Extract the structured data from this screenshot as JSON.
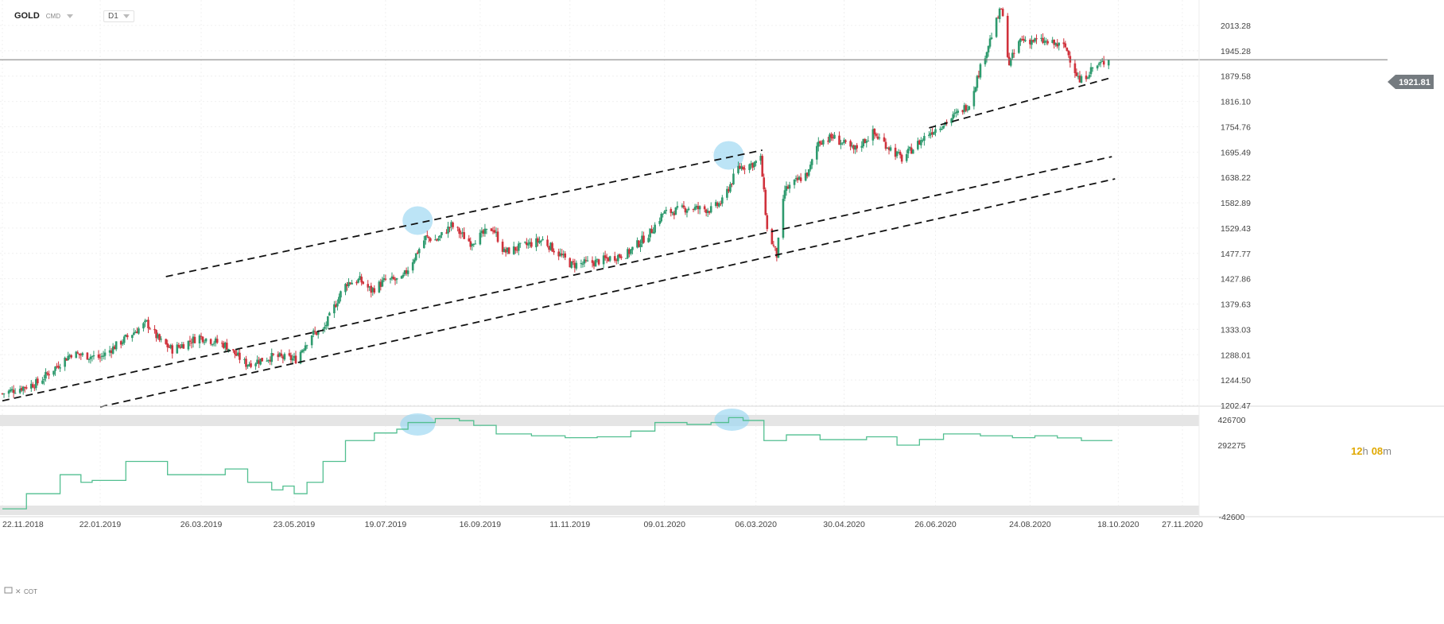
{
  "toolbar": {
    "symbol": "GOLD",
    "instrument_type": "CMD",
    "timeframe": "D1"
  },
  "countdown": {
    "hours": "12",
    "h": "h",
    "minutes": "08",
    "m": "m"
  },
  "indicator_label": "COT",
  "last_price_label": "1921.81",
  "colors": {
    "up": "#2e9a6e",
    "down": "#d0323c",
    "cot_line": "#52bf90",
    "highlight": "#9fd8f2",
    "channel": "#111111"
  },
  "chart_data": [
    {
      "type": "candlestick",
      "interval": "D1",
      "symbol": "GOLD",
      "x_range": [
        "2018-11-22",
        "2020-11-27"
      ],
      "ylim": [
        1202.47,
        2075
      ],
      "y_ticks": [
        "2013.28",
        "1945.28",
        "1879.58",
        "1816.10",
        "1754.76",
        "1695.49",
        "1638.22",
        "1582.89",
        "1529.43",
        "1477.77",
        "1427.86",
        "1379.63",
        "1333.03",
        "1288.01",
        "1244.50",
        "1202.47"
      ],
      "x_ticks": [
        "22.11.2018",
        "22.01.2019",
        "26.03.2019",
        "23.05.2019",
        "19.07.2019",
        "16.09.2019",
        "11.11.2019",
        "09.01.2020",
        "06.03.2020",
        "30.04.2020",
        "26.06.2020",
        "24.08.2020",
        "18.10.2020",
        "27.11.2020"
      ],
      "grid": true,
      "last_price": 1921.81,
      "close_path": [
        [
          "2018-11-22",
          1222
        ],
        [
          "2018-12-14",
          1240
        ],
        [
          "2019-01-04",
          1290
        ],
        [
          "2019-01-22",
          1283
        ],
        [
          "2019-02-20",
          1345
        ],
        [
          "2019-02-28",
          1313
        ],
        [
          "2019-03-08",
          1297
        ],
        [
          "2019-03-25",
          1320
        ],
        [
          "2019-04-10",
          1305
        ],
        [
          "2019-04-23",
          1272
        ],
        [
          "2019-05-10",
          1285
        ],
        [
          "2019-05-24",
          1280
        ],
        [
          "2019-06-03",
          1325
        ],
        [
          "2019-06-10",
          1330
        ],
        [
          "2019-06-21",
          1400
        ],
        [
          "2019-06-25",
          1420
        ],
        [
          "2019-07-03",
          1425
        ],
        [
          "2019-07-10",
          1405
        ],
        [
          "2019-07-19",
          1425
        ],
        [
          "2019-07-29",
          1425
        ],
        [
          "2019-08-13",
          1510
        ],
        [
          "2019-08-20",
          1505
        ],
        [
          "2019-08-29",
          1535
        ],
        [
          "2019-09-10",
          1500
        ],
        [
          "2019-09-24",
          1530
        ],
        [
          "2019-10-01",
          1480
        ],
        [
          "2019-10-25",
          1505
        ],
        [
          "2019-11-12",
          1455
        ],
        [
          "2019-11-26",
          1460
        ],
        [
          "2019-12-17",
          1478
        ],
        [
          "2019-12-31",
          1520
        ],
        [
          "2020-01-08",
          1560
        ],
        [
          "2020-01-24",
          1572
        ],
        [
          "2020-02-07",
          1568
        ],
        [
          "2020-02-14",
          1585
        ],
        [
          "2020-02-24",
          1660
        ],
        [
          "2020-03-05",
          1670
        ],
        [
          "2020-03-09",
          1680
        ],
        [
          "2020-03-13",
          1525
        ],
        [
          "2020-03-19",
          1474
        ],
        [
          "2020-03-24",
          1610
        ],
        [
          "2020-04-08",
          1650
        ],
        [
          "2020-04-14",
          1720
        ],
        [
          "2020-04-23",
          1730
        ],
        [
          "2020-05-06",
          1700
        ],
        [
          "2020-05-18",
          1740
        ],
        [
          "2020-06-05",
          1680
        ],
        [
          "2020-06-22",
          1740
        ],
        [
          "2020-07-06",
          1775
        ],
        [
          "2020-07-17",
          1810
        ],
        [
          "2020-07-24",
          1900
        ],
        [
          "2020-08-06",
          2060
        ],
        [
          "2020-08-11",
          1910
        ],
        [
          "2020-08-18",
          1975
        ],
        [
          "2020-09-01",
          1970
        ],
        [
          "2020-09-15",
          1955
        ],
        [
          "2020-09-24",
          1865
        ],
        [
          "2020-10-02",
          1900
        ],
        [
          "2020-10-12",
          1921.81
        ]
      ],
      "channel_lines": [
        [
          [
            "2019-03-04",
            1432
          ],
          [
            "2020-03-10",
            1700
          ]
        ],
        [
          [
            "2018-11-22",
            1210
          ],
          [
            "2020-10-14",
            1685
          ]
        ],
        [
          [
            "2019-01-22",
            1200
          ],
          [
            "2020-10-16",
            1635
          ]
        ],
        [
          [
            "2020-06-22",
            1752
          ],
          [
            "2020-10-14",
            1876
          ]
        ]
      ],
      "highlights": [
        {
          "x": "2019-08-08",
          "y": 1545
        },
        {
          "x": "2020-02-18",
          "y": 1688
        }
      ]
    },
    {
      "type": "line",
      "name": "COT",
      "ylim": [
        -42600,
        426700
      ],
      "y_ticks": [
        "426700",
        "292275",
        "-42600"
      ],
      "steps": [
        [
          "2018-11-22",
          -60000
        ],
        [
          "2018-12-07",
          20000
        ],
        [
          "2018-12-28",
          120000
        ],
        [
          "2019-01-10",
          80000
        ],
        [
          "2019-01-17",
          90000
        ],
        [
          "2019-02-07",
          190000
        ],
        [
          "2019-03-05",
          120000
        ],
        [
          "2019-04-10",
          150000
        ],
        [
          "2019-04-24",
          80000
        ],
        [
          "2019-05-09",
          40000
        ],
        [
          "2019-05-16",
          60000
        ],
        [
          "2019-05-23",
          20000
        ],
        [
          "2019-05-31",
          80000
        ],
        [
          "2019-06-10",
          190000
        ],
        [
          "2019-06-24",
          300000
        ],
        [
          "2019-07-12",
          340000
        ],
        [
          "2019-07-26",
          360000
        ],
        [
          "2019-08-02",
          395000
        ],
        [
          "2019-08-19",
          416000
        ],
        [
          "2019-09-03",
          405000
        ],
        [
          "2019-09-12",
          380000
        ],
        [
          "2019-09-26",
          335000
        ],
        [
          "2019-10-18",
          325000
        ],
        [
          "2019-11-08",
          315000
        ],
        [
          "2019-11-28",
          320000
        ],
        [
          "2019-12-19",
          350000
        ],
        [
          "2020-01-03",
          395000
        ],
        [
          "2020-01-23",
          385000
        ],
        [
          "2020-02-07",
          395000
        ],
        [
          "2020-02-18",
          421000
        ],
        [
          "2020-02-27",
          406000
        ],
        [
          "2020-03-11",
          300000
        ],
        [
          "2020-03-25",
          330000
        ],
        [
          "2020-04-15",
          305000
        ],
        [
          "2020-05-14",
          320000
        ],
        [
          "2020-06-02",
          276000
        ],
        [
          "2020-06-16",
          306000
        ],
        [
          "2020-07-01",
          335000
        ],
        [
          "2020-07-24",
          325000
        ],
        [
          "2020-08-13",
          315000
        ],
        [
          "2020-08-27",
          325000
        ],
        [
          "2020-09-10",
          314000
        ],
        [
          "2020-09-25",
          300000
        ],
        [
          "2020-10-14",
          303000
        ]
      ],
      "highlights": [
        {
          "x": "2019-08-08",
          "y": 385000
        },
        {
          "x": "2020-02-20",
          "y": 410000
        }
      ]
    }
  ]
}
